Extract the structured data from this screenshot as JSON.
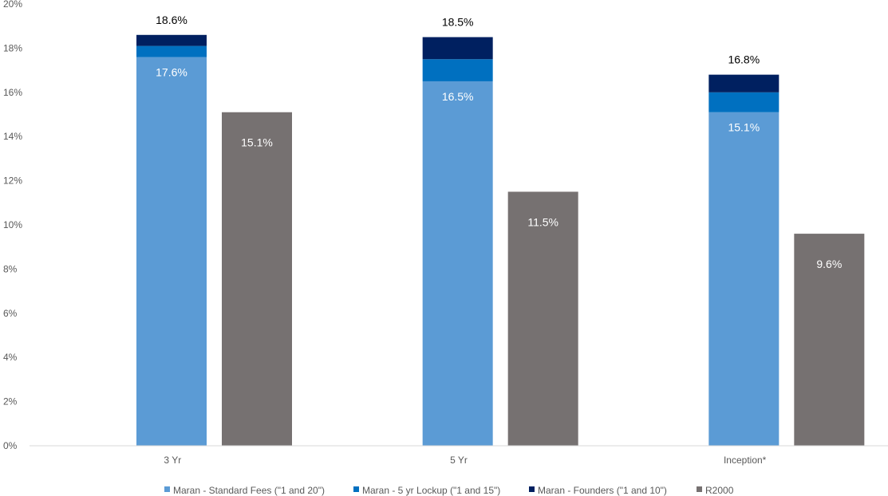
{
  "chart_data": {
    "type": "bar",
    "stacked": true,
    "title": "",
    "xlabel": "",
    "ylabel": "",
    "ylim": [
      0,
      20
    ],
    "yticks": [
      "0%",
      "2%",
      "4%",
      "6%",
      "8%",
      "10%",
      "12%",
      "14%",
      "16%",
      "18%",
      "20%"
    ],
    "categories": [
      "3 Yr",
      "5 Yr",
      "Inception*"
    ],
    "series": [
      {
        "name": "Maran - Standard Fees (\"1 and 20\")",
        "values": [
          17.6,
          16.5,
          15.1
        ],
        "color": "#5b9bd5",
        "stack": "maran"
      },
      {
        "name": "Maran - 5 yr Lockup (\"1 and 15\")",
        "values": [
          0.5,
          1.0,
          0.9
        ],
        "color": "#0070c0",
        "stack": "maran"
      },
      {
        "name": "Maran - Founders (\"1 and 10\")",
        "values": [
          0.5,
          1.0,
          0.8
        ],
        "color": "#002060",
        "stack": "maran"
      },
      {
        "name": "R2000",
        "values": [
          15.1,
          11.5,
          9.6
        ],
        "color": "#767171",
        "stack": "r2000"
      }
    ],
    "data_labels": {
      "maran_base": [
        "17.6%",
        "16.5%",
        "15.1%"
      ],
      "maran_total": [
        "18.6%",
        "18.5%",
        "16.8%"
      ],
      "r2000": [
        "15.1%",
        "11.5%",
        "9.6%"
      ]
    },
    "legend_position": "bottom",
    "grid": false
  }
}
